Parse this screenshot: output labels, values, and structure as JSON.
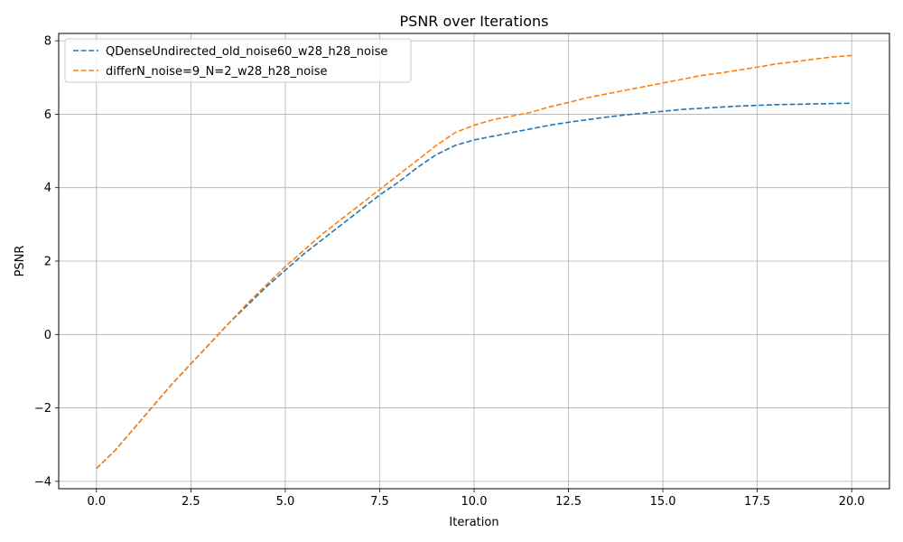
{
  "chart_data": {
    "type": "line",
    "title": "PSNR over Iterations",
    "xlabel": "Iteration",
    "ylabel": "PSNR",
    "xlim": [
      -1.0,
      21.0
    ],
    "ylim": [
      -4.2,
      8.2
    ],
    "xticks": [
      0.0,
      2.5,
      5.0,
      7.5,
      10.0,
      12.5,
      15.0,
      17.5,
      20.0
    ],
    "xtick_labels": [
      "0.0",
      "2.5",
      "5.0",
      "7.5",
      "10.0",
      "12.5",
      "15.0",
      "17.5",
      "20.0"
    ],
    "yticks": [
      -4,
      -2,
      0,
      2,
      4,
      6,
      8
    ],
    "ytick_labels": [
      "−4",
      "−2",
      "0",
      "2",
      "4",
      "6",
      "8"
    ],
    "grid": true,
    "legend_position": "top-left",
    "series": [
      {
        "name": "QDenseUndirected_old_noise60_w28_h28_noise",
        "color": "#1f77b4",
        "line_style": "dashed",
        "x": [
          0,
          0.5,
          1,
          1.5,
          2,
          2.5,
          3,
          3.5,
          4,
          4.5,
          5,
          5.5,
          6,
          6.5,
          7,
          7.5,
          8,
          8.5,
          9,
          9.5,
          10,
          10.5,
          11,
          11.5,
          12,
          12.5,
          13,
          13.5,
          14,
          14.5,
          15,
          15.5,
          16,
          16.5,
          17,
          17.5,
          18,
          18.5,
          19,
          19.5,
          20
        ],
        "y": [
          -3.65,
          -3.15,
          -2.55,
          -1.95,
          -1.35,
          -0.8,
          -0.25,
          0.3,
          0.8,
          1.3,
          1.75,
          2.2,
          2.6,
          3.0,
          3.4,
          3.8,
          4.15,
          4.55,
          4.9,
          5.15,
          5.3,
          5.4,
          5.5,
          5.6,
          5.7,
          5.78,
          5.85,
          5.92,
          5.98,
          6.03,
          6.08,
          6.13,
          6.16,
          6.19,
          6.22,
          6.24,
          6.26,
          6.27,
          6.28,
          6.29,
          6.3
        ]
      },
      {
        "name": "differN_noise=9_N=2_w28_h28_noise",
        "color": "#ff7f0e",
        "line_style": "dashed",
        "x": [
          0,
          0.5,
          1,
          1.5,
          2,
          2.5,
          3,
          3.5,
          4,
          4.5,
          5,
          5.5,
          6,
          6.5,
          7,
          7.5,
          8,
          8.5,
          9,
          9.5,
          10,
          10.5,
          11,
          11.5,
          12,
          12.5,
          13,
          13.5,
          14,
          14.5,
          15,
          15.5,
          16,
          16.5,
          17,
          17.5,
          18,
          18.5,
          19,
          19.5,
          20
        ],
        "y": [
          -3.65,
          -3.15,
          -2.55,
          -1.95,
          -1.35,
          -0.8,
          -0.25,
          0.3,
          0.85,
          1.35,
          1.85,
          2.3,
          2.75,
          3.15,
          3.55,
          3.95,
          4.35,
          4.75,
          5.15,
          5.5,
          5.7,
          5.85,
          5.95,
          6.05,
          6.2,
          6.32,
          6.45,
          6.55,
          6.65,
          6.75,
          6.85,
          6.95,
          7.05,
          7.12,
          7.2,
          7.28,
          7.37,
          7.43,
          7.5,
          7.56,
          7.6
        ]
      }
    ]
  }
}
